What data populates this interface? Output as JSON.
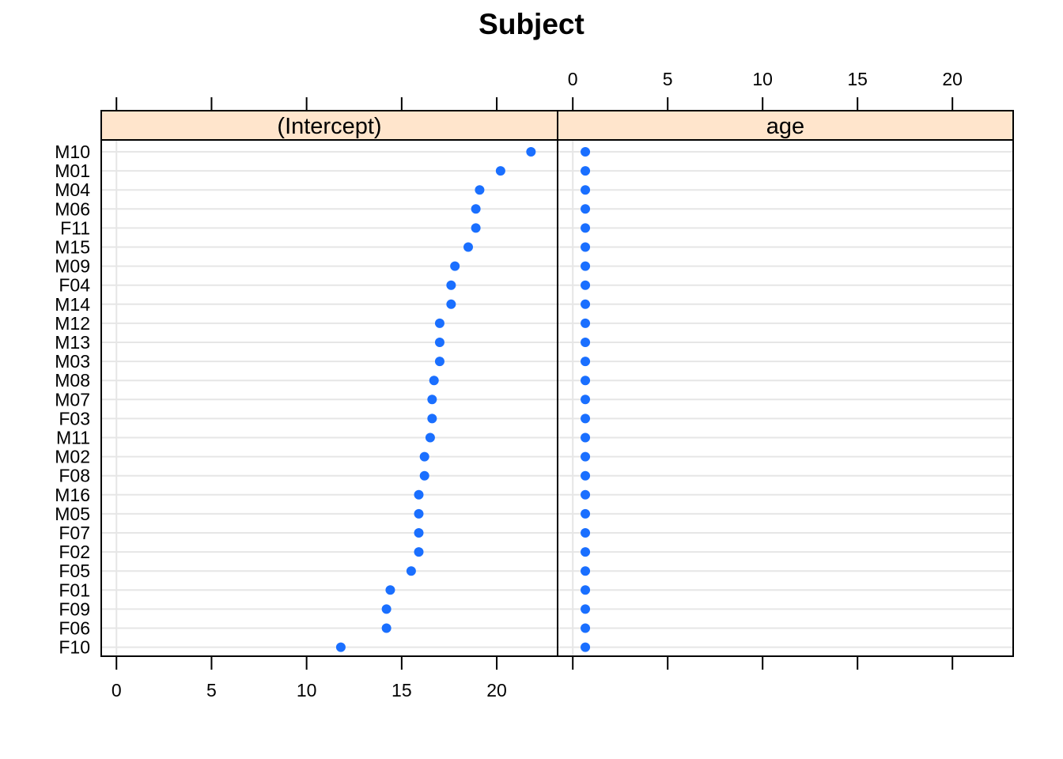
{
  "chart_data": {
    "type": "scatter",
    "title": "Subject",
    "panels": [
      {
        "name": "(Intercept)",
        "xlim": [
          -0.8,
          23.2
        ],
        "ticks": [
          0,
          5,
          10,
          15,
          20
        ],
        "tick_labels": [
          "0",
          "5",
          "10",
          "15",
          "20"
        ],
        "axis_side": "bottom"
      },
      {
        "name": "age",
        "xlim": [
          -0.8,
          23.2
        ],
        "ticks": [
          0,
          5,
          10,
          15,
          20
        ],
        "tick_labels": [
          "0",
          "5",
          "10",
          "15",
          "20"
        ],
        "axis_side": "top"
      }
    ],
    "categories": [
      "M10",
      "M01",
      "M04",
      "M06",
      "F11",
      "M15",
      "M09",
      "F04",
      "M14",
      "M12",
      "M13",
      "M03",
      "M08",
      "M07",
      "F03",
      "M11",
      "M02",
      "F08",
      "M16",
      "M05",
      "F07",
      "F02",
      "F05",
      "F01",
      "F09",
      "F06",
      "F10"
    ],
    "series": [
      {
        "name": "(Intercept)",
        "values": [
          21.8,
          20.2,
          19.1,
          18.9,
          18.9,
          18.5,
          17.8,
          17.6,
          17.6,
          17.0,
          17.0,
          17.0,
          16.7,
          16.6,
          16.6,
          16.5,
          16.2,
          16.2,
          15.9,
          15.9,
          15.9,
          15.9,
          15.5,
          14.4,
          14.2,
          14.2,
          11.8
        ]
      },
      {
        "name": "age",
        "values": [
          0.66,
          0.66,
          0.66,
          0.66,
          0.66,
          0.66,
          0.66,
          0.66,
          0.66,
          0.66,
          0.66,
          0.66,
          0.66,
          0.66,
          0.66,
          0.66,
          0.66,
          0.66,
          0.66,
          0.66,
          0.66,
          0.66,
          0.66,
          0.66,
          0.66,
          0.66,
          0.66
        ]
      }
    ],
    "grid": true,
    "colors": {
      "point": "#1a6fff",
      "strip": "#ffe5cc",
      "grid": "#e6e6e6"
    }
  }
}
